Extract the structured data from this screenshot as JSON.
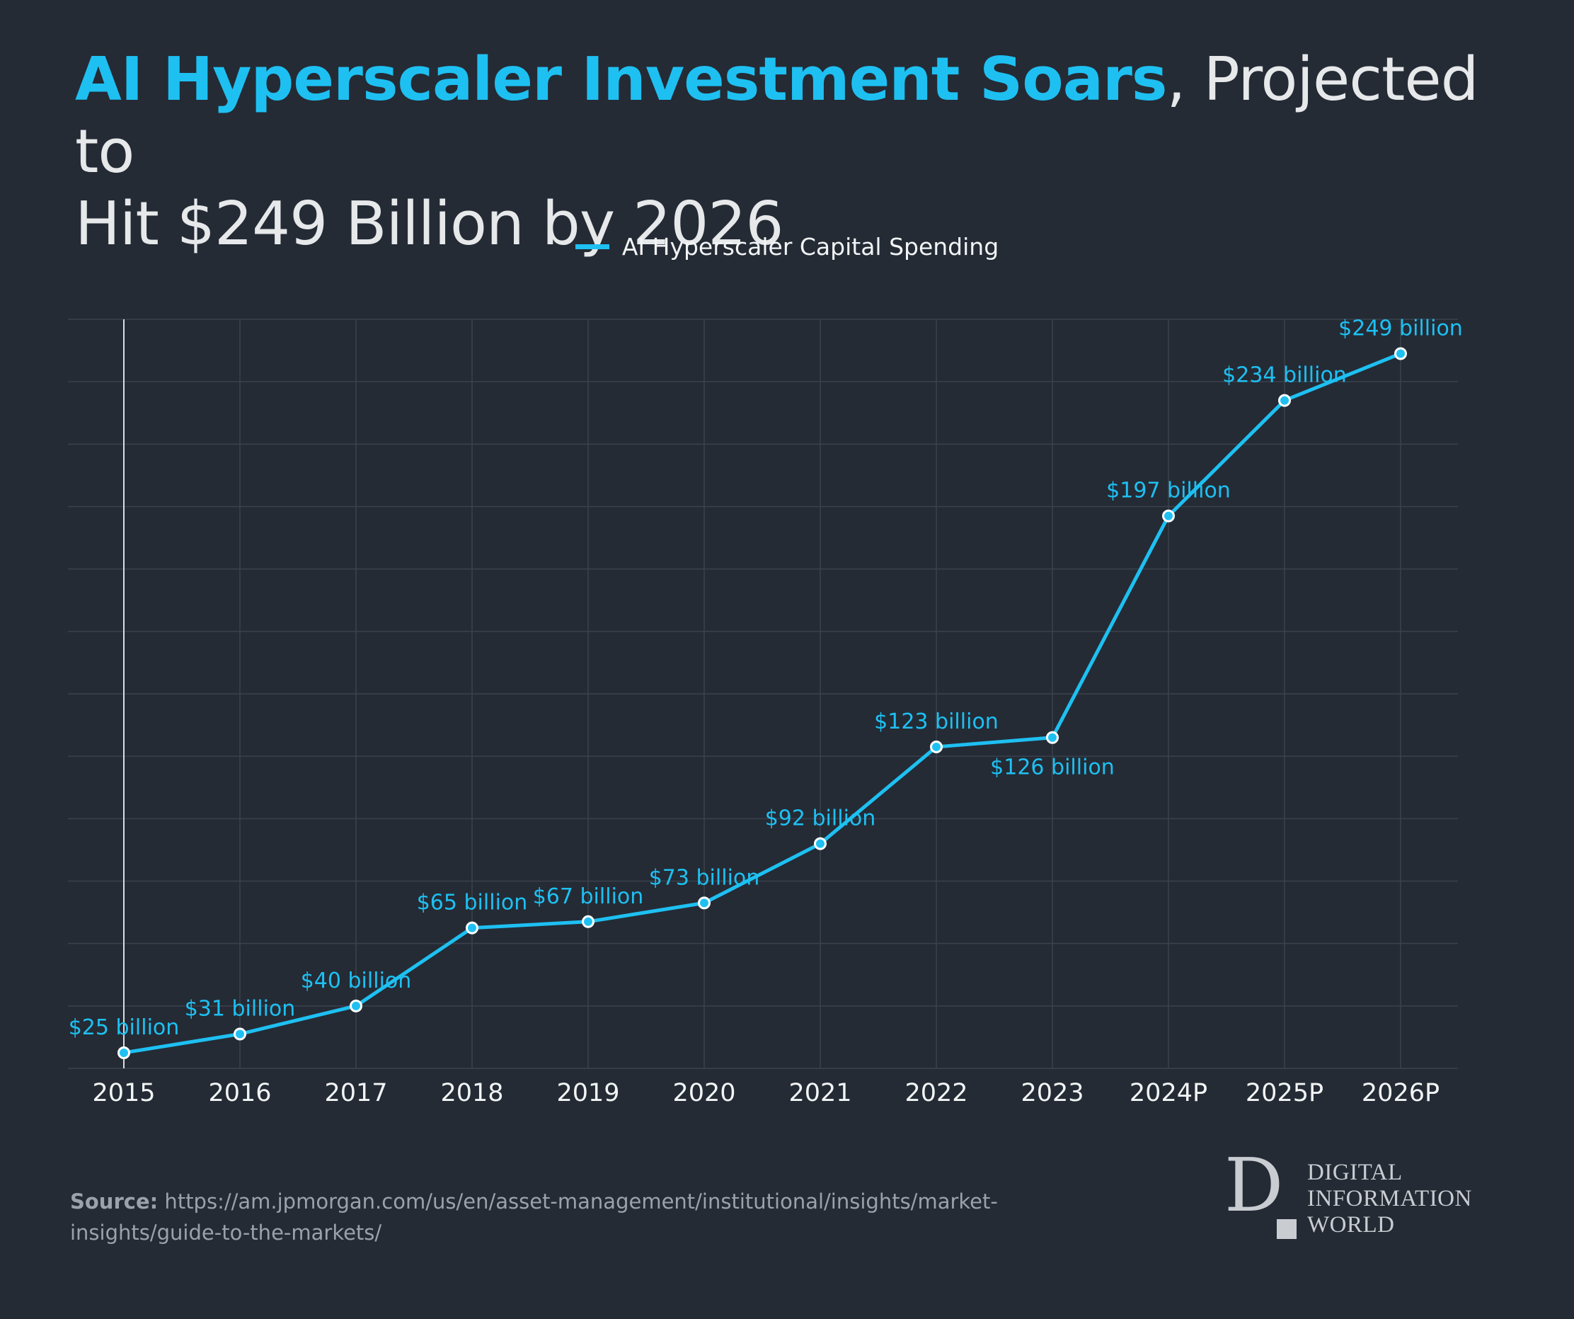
{
  "title": {
    "highlight": "AI Hyperscaler Investment Soars",
    "rest_line1": ", Projected to",
    "rest_line2": "Hit $249 Billion by 2026"
  },
  "legend": {
    "label": "AI Hyperscaler Capital Spending"
  },
  "colors": {
    "background": "#242b35",
    "accent": "#1ec0f2",
    "grid": "#3a424d",
    "text": "#f2f4f5"
  },
  "chart_data": {
    "type": "line",
    "title": "AI Hyperscaler Investment Soars, Projected to Hit $249 Billion by 2026",
    "xlabel": "",
    "ylabel": "",
    "ylim": [
      20,
      260
    ],
    "grid": true,
    "legend_position": "top-center",
    "categories": [
      "2015",
      "2016",
      "2017",
      "2018",
      "2019",
      "2020",
      "2021",
      "2022",
      "2023",
      "2024P",
      "2025P",
      "2026P"
    ],
    "series": [
      {
        "name": "AI Hyperscaler Capital Spending",
        "values": [
          25,
          31,
          40,
          65,
          67,
          73,
          92,
          123,
          126,
          197,
          234,
          249
        ],
        "labels": [
          "$25 billion",
          "$31 billion",
          "$40 billion",
          "$65 billion",
          "$67 billion",
          "$73 billion",
          "$92 billion",
          "$123 billion",
          "$126 billion",
          "$197 billion",
          "$234 billion",
          "$249 billion"
        ],
        "label_positions": [
          "above",
          "above",
          "above",
          "above",
          "above",
          "above",
          "above",
          "above",
          "below",
          "above",
          "above",
          "above"
        ]
      }
    ]
  },
  "source": {
    "label": "Source:",
    "url": " https://am.jpmorgan.com/us/en/asset-management/institutional/insights/market-insights/guide-to-the-markets/"
  },
  "logo": {
    "mark": "D",
    "line1": "DIGITAL",
    "line2": "INFORMATION",
    "line3": "WORLD"
  }
}
